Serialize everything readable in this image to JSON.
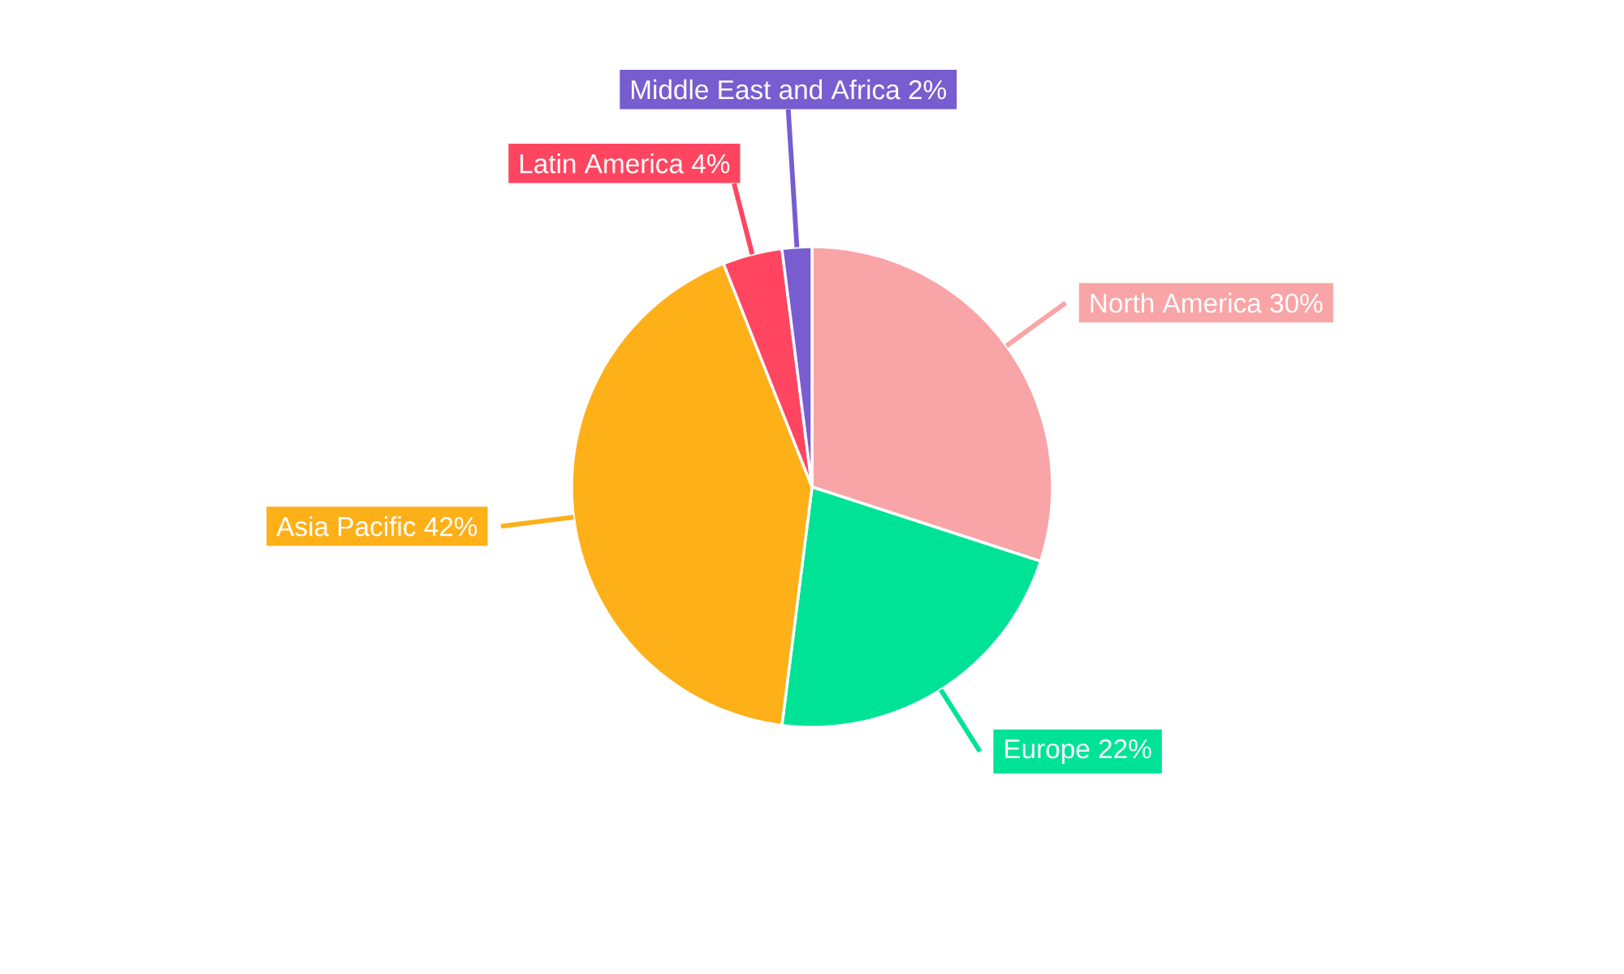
{
  "chart_data": {
    "type": "pie",
    "categories": [
      "North America",
      "Europe",
      "Asia Pacific",
      "Latin America",
      "Middle East and Africa"
    ],
    "values": [
      30,
      22,
      42,
      4,
      2
    ],
    "value_labels": [
      "30%",
      "22%",
      "42%",
      "4%",
      "2%"
    ],
    "colors": [
      "#f9a4a6",
      "#00e396",
      "#feb019",
      "#ff4560",
      "#775dd0"
    ],
    "data_labels": true
  }
}
